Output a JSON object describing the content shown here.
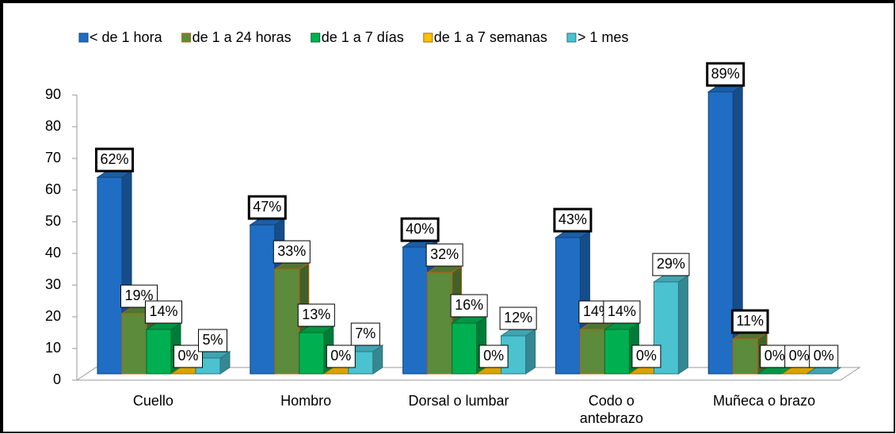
{
  "chart_data": {
    "type": "bar3d",
    "categories": [
      "Cuello",
      "Hombro",
      "Dorsal o lumbar",
      "Codo o\nantebrazo",
      "Muñeca o brazo"
    ],
    "series": [
      {
        "name": "< de 1 hora",
        "color": "#1f6ec4",
        "values": [
          62,
          47,
          40,
          43,
          89
        ],
        "value_labels": [
          "62%",
          "47%",
          "40%",
          "43%",
          "89%"
        ]
      },
      {
        "name": "de 1 a 24 horas",
        "color": "#5b8b3b",
        "values": [
          19,
          33,
          32,
          14,
          11
        ],
        "value_labels": [
          "19%",
          "33%",
          "32%",
          "14%",
          "11%"
        ]
      },
      {
        "name": "de 1 a 7 días",
        "color": "#00b050",
        "values": [
          14,
          13,
          16,
          14,
          0
        ],
        "value_labels": [
          "14%",
          "13%",
          "16%",
          "14%",
          "0%"
        ]
      },
      {
        "name": "de 1 a 7 semanas",
        "color": "#ffc000",
        "values": [
          0,
          0,
          0,
          0,
          0
        ],
        "value_labels": [
          "0%",
          "0%",
          "0%",
          "0%",
          "0%"
        ]
      },
      {
        "name": "> 1 mes",
        "color": "#4bc2d0",
        "values": [
          5,
          7,
          12,
          29,
          0
        ],
        "value_labels": [
          "5%",
          "7%",
          "12%",
          "29%",
          "0%"
        ]
      }
    ],
    "ylim": [
      0,
      90
    ],
    "yticks": [
      0,
      10,
      20,
      30,
      40,
      50,
      60,
      70,
      80,
      90
    ],
    "legend": "top"
  }
}
